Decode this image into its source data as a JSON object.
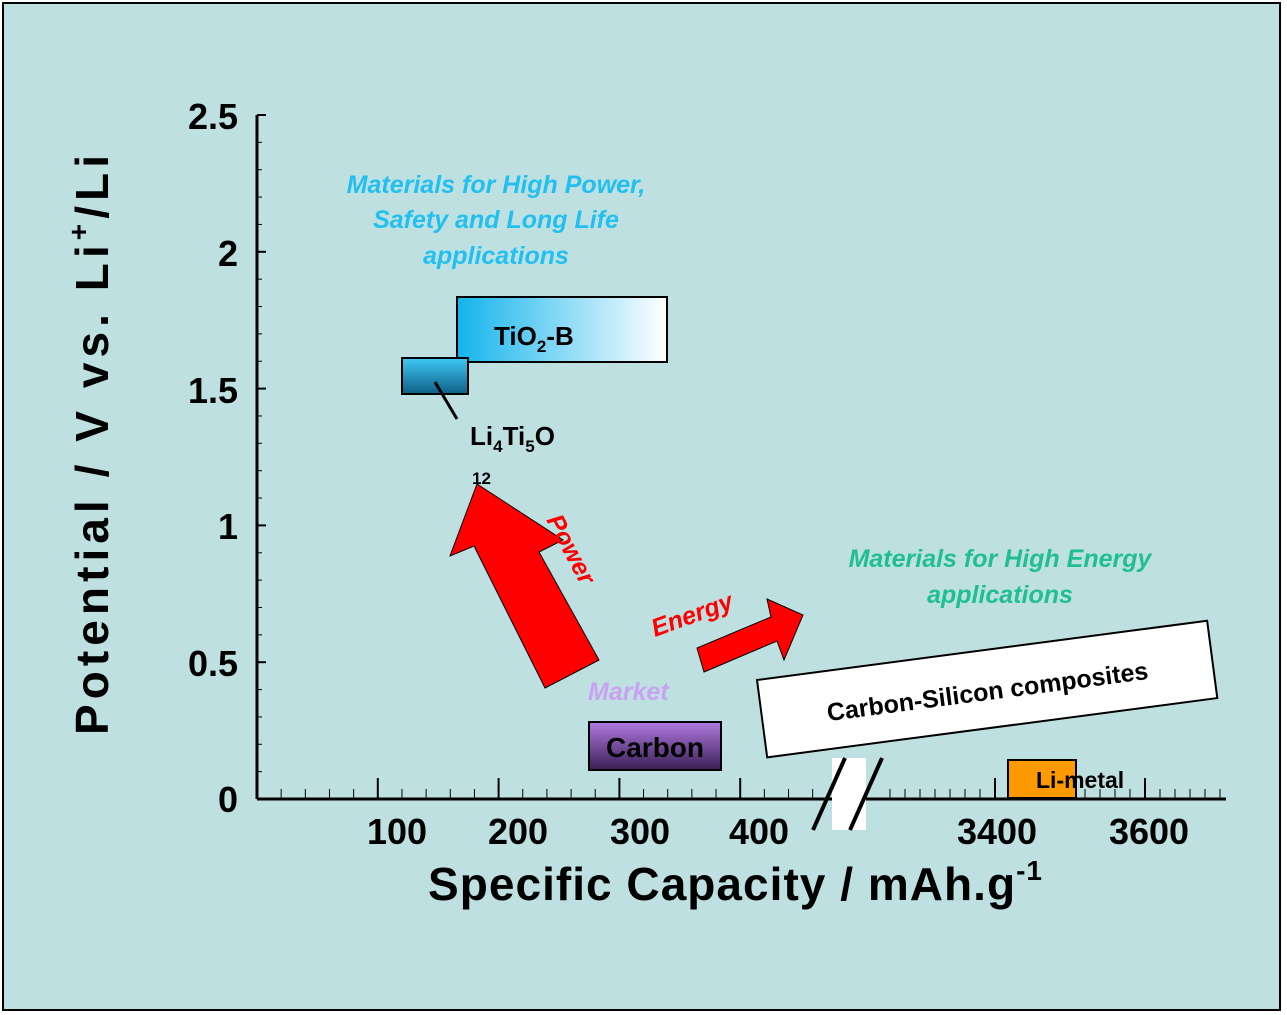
{
  "chart_data": {
    "type": "scatter",
    "xlabel": "Specific Capacity / mAh.g",
    "xlabel_sup": "-1",
    "ylabel_pre": "Potential / V vs. Li",
    "ylabel_sup": "+",
    "ylabel_post": "/Li",
    "ylim": [
      0,
      2.5
    ],
    "y_ticks": [
      "0",
      "0.5",
      "1",
      "1.5",
      "2",
      "2.5"
    ],
    "x_ticks_left": [
      "100",
      "200",
      "300",
      "400"
    ],
    "x_ticks_right": [
      "3400",
      "3600"
    ],
    "materials": [
      {
        "name": "TiO",
        "sub": "2",
        "suffix": "-B",
        "x_range": [
          170,
          340
        ],
        "y_range": [
          1.6,
          1.84
        ],
        "color": "#1ab8ee"
      },
      {
        "name_parts": [
          "Li",
          "4",
          "Ti",
          "5",
          "O"
        ],
        "name_tail": "12",
        "x_range": [
          120,
          175
        ],
        "y_range": [
          1.48,
          1.62
        ],
        "color": "#1a9fd0"
      },
      {
        "name": "Carbon",
        "x_range": [
          275,
          385
        ],
        "y_range": [
          0.05,
          0.28
        ],
        "color": "#7a4a9a"
      },
      {
        "name": "Carbon-Silicon composites",
        "color": "#ffffff"
      },
      {
        "name": "Li-metal",
        "x_range": [
          3420,
          3520
        ],
        "y_range": [
          0,
          0.14
        ],
        "color": "#ff9900"
      }
    ],
    "annotations": {
      "high_power": [
        "Materials for High Power,",
        "Safety and Long Life",
        "applications"
      ],
      "high_energy": [
        "Materials for High Energy",
        "applications"
      ],
      "power_arrow": "Power",
      "energy_arrow": "Energy",
      "market": "Market"
    },
    "colors": {
      "background": "#bfe0e0",
      "high_power_text": "#22c0f0",
      "high_energy_text": "#1fbf8f",
      "arrow": "#ff0000",
      "market": "#c9a2f2"
    }
  }
}
